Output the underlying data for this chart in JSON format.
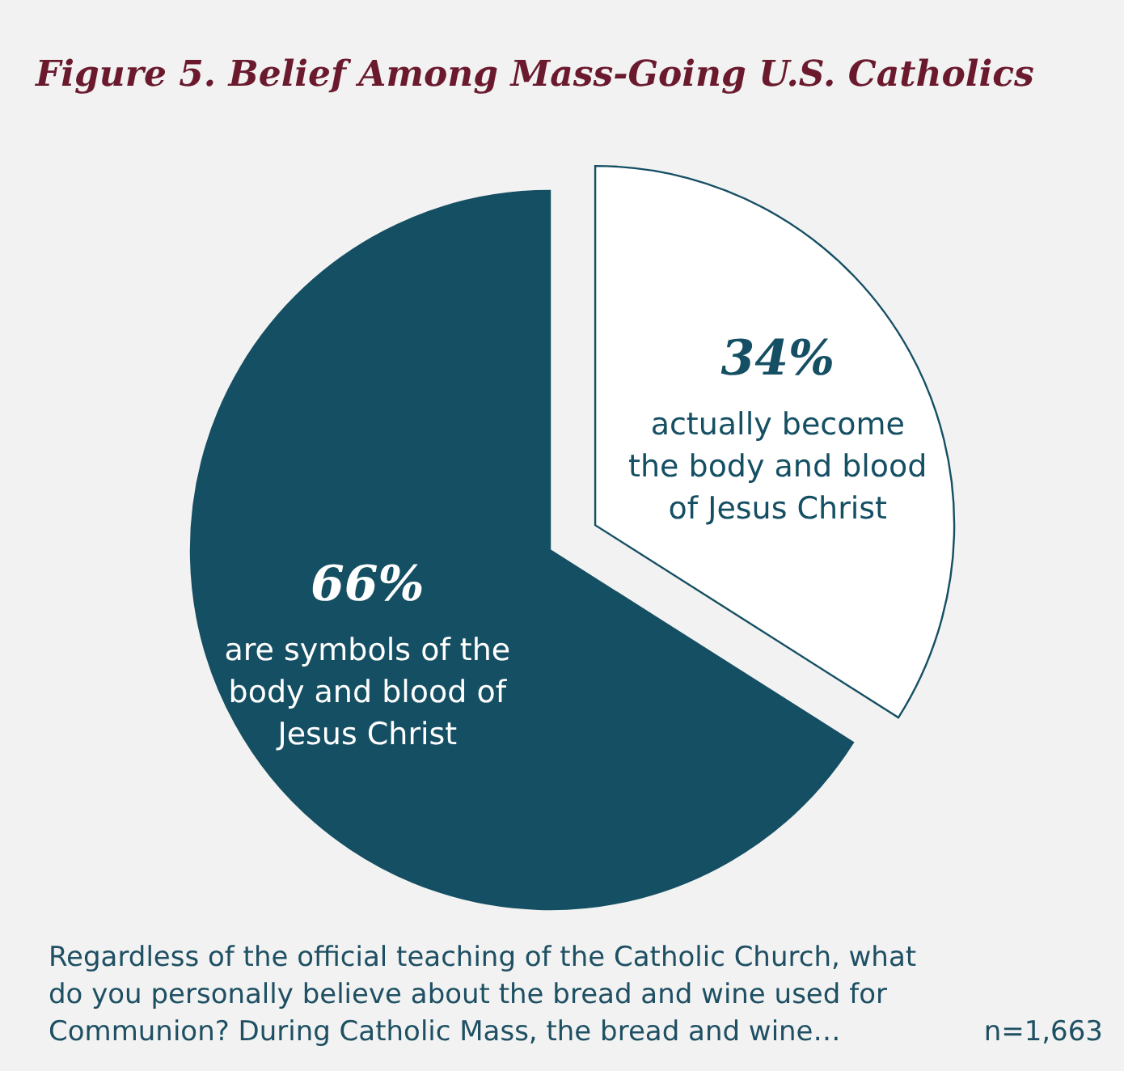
{
  "chart_data": {
    "type": "pie",
    "title": "Figure 5.  Belief Among Mass-Going U.S. Catholics",
    "categories": [
      "actually become the body and blood of Jesus Christ",
      "are symbols of the body and blood of Jesus Christ"
    ],
    "values": [
      34,
      66
    ],
    "colors": [
      "#ffffff",
      "#154f63"
    ],
    "annotations": [
      "Regardless of the official teaching of the Catholic Church, what do you personally believe about the bread and wine used for Communion? During Catholic Mass, the bread and wine…",
      "n=1,663"
    ],
    "value_labels": [
      "34%",
      "66%"
    ]
  }
}
